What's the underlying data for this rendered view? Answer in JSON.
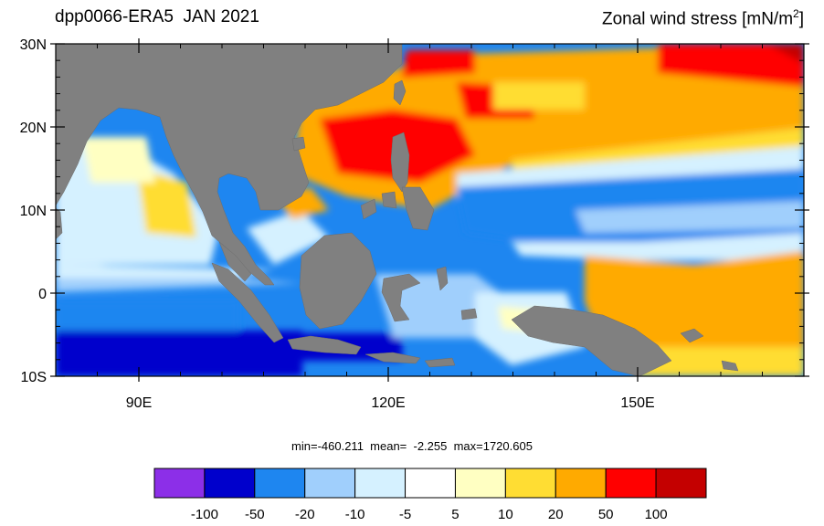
{
  "header": {
    "left_title": "dpp0066-ERA5  JAN 2021",
    "right_title_main": "Zonal wind stress [mN/m",
    "right_title_sup": "2",
    "right_title_end": "]"
  },
  "stats": {
    "text": "min=-460.211  mean=  -2.255  max=1720.605"
  },
  "map": {
    "lon_range": [
      80,
      170
    ],
    "lat_range": [
      -10,
      30
    ],
    "land_color": "#808080",
    "lat_ticks": [
      {
        "value": 30,
        "label": "30N"
      },
      {
        "value": 20,
        "label": "20N"
      },
      {
        "value": 10,
        "label": "10N"
      },
      {
        "value": 0,
        "label": "0"
      },
      {
        "value": -10,
        "label": "10S"
      }
    ],
    "lon_ticks": [
      {
        "value": 90,
        "label": "90E"
      },
      {
        "value": 120,
        "label": "120E"
      },
      {
        "value": 150,
        "label": "150E"
      }
    ]
  },
  "colorbar": {
    "colors": [
      "#8c2fe8",
      "#0000cc",
      "#1e86f0",
      "#a0cffc",
      "#d5f1ff",
      "#ffffff",
      "#ffffc2",
      "#ffdd33",
      "#ffaa00",
      "#ff0000",
      "#c40000"
    ],
    "labels": [
      "-100",
      "-50",
      "-20",
      "-10",
      "-5",
      "5",
      "10",
      "20",
      "50",
      "100"
    ]
  }
}
